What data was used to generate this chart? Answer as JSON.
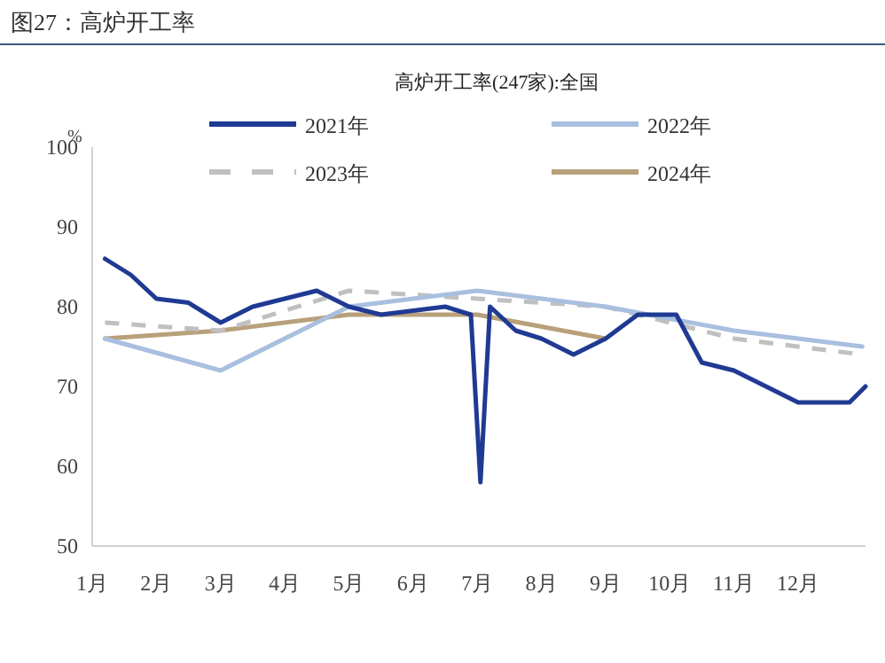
{
  "chart_data": {
    "type": "line",
    "title": "高炉开工率(247家):全国",
    "subtitle": "图27：高炉开工率",
    "ylabel": "%",
    "xlim": [
      1,
      13.05
    ],
    "xticks": [
      {
        "value": 1,
        "label": "1月"
      },
      {
        "value": 2,
        "label": "2月"
      },
      {
        "value": 3,
        "label": "3月"
      },
      {
        "value": 4,
        "label": "4月"
      },
      {
        "value": 5,
        "label": "5月"
      },
      {
        "value": 6,
        "label": "6月"
      },
      {
        "value": 7,
        "label": "7月"
      },
      {
        "value": 8,
        "label": "8月"
      },
      {
        "value": 9,
        "label": "9月"
      },
      {
        "value": 10,
        "label": "10月"
      },
      {
        "value": 11,
        "label": "11月"
      },
      {
        "value": 12,
        "label": "12月"
      }
    ],
    "ylim": [
      50,
      100
    ],
    "yticks": [
      50,
      60,
      70,
      80,
      90,
      100
    ],
    "grid": false,
    "legend": "top",
    "marker": "none",
    "series": [
      {
        "name": "2021年",
        "color": "#1f3a93",
        "line_style": "solid",
        "x": [
          1.2,
          1.6,
          2.0,
          2.5,
          3.0,
          3.5,
          4.0,
          4.5,
          5.0,
          5.5,
          6.0,
          6.5,
          6.9,
          7.05,
          7.2,
          7.6,
          8.0,
          8.5,
          9.0,
          9.5,
          10.1,
          10.5,
          11.0,
          11.5,
          12.0,
          12.5,
          12.8,
          13.05
        ],
        "values": [
          86,
          84,
          81,
          80.5,
          78,
          80,
          81,
          82,
          80,
          79,
          79.5,
          80,
          79,
          58,
          80,
          77,
          76,
          74,
          76,
          79,
          79,
          73,
          72,
          70,
          68,
          68,
          68,
          70
        ]
      },
      {
        "name": "2022年",
        "color": "#a9bfdf",
        "line_style": "solid",
        "x": [
          1.2,
          3,
          5,
          7,
          9,
          11,
          13
        ],
        "values": [
          76,
          72,
          80,
          82,
          80,
          77,
          75
        ]
      },
      {
        "name": "2023年",
        "color": "#c0c0c0",
        "line_style": "dashed",
        "x": [
          1.2,
          3,
          5,
          7,
          9,
          11,
          13
        ],
        "values": [
          78,
          77,
          82,
          81,
          80,
          76,
          74
        ]
      },
      {
        "name": "2024年",
        "color": "#b8a07a",
        "line_style": "solid",
        "x": [
          1.2,
          3,
          5,
          7,
          9
        ],
        "values": [
          76,
          77,
          79,
          79,
          76
        ]
      }
    ]
  }
}
